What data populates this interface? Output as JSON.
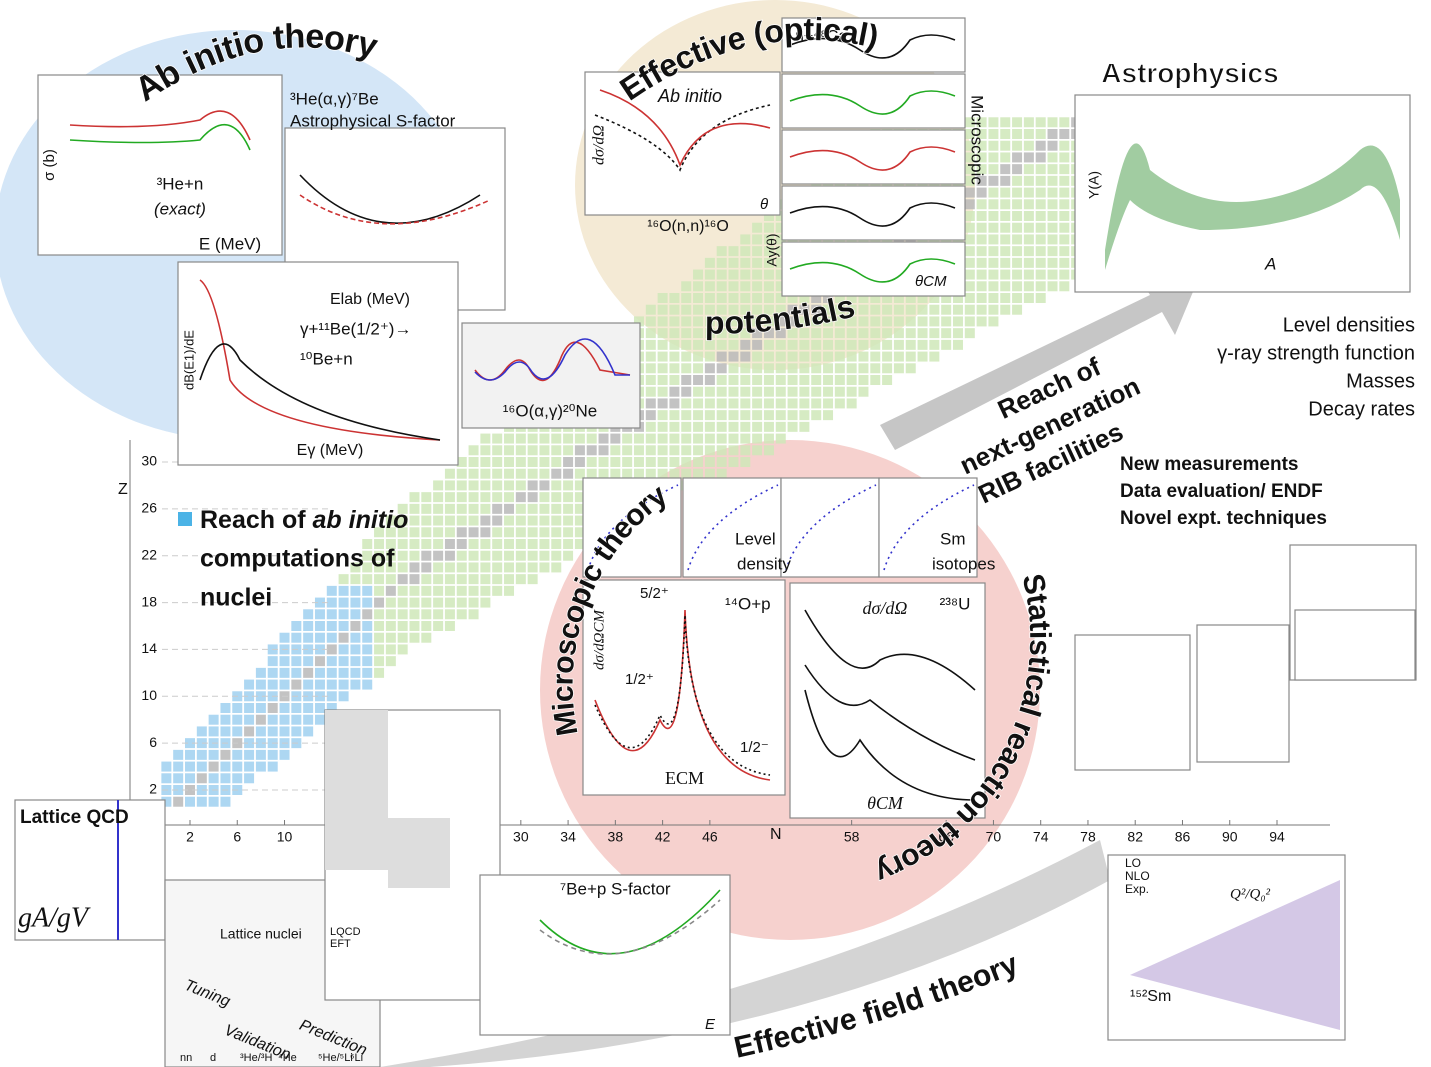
{
  "themes": {
    "ab_initio": "Ab initio theory",
    "optical_top": "Effective (optical)",
    "optical_bottom": "potentials",
    "astrophysics": "Astrophysics",
    "microscopic": "Microscopic theory",
    "statistical": "Statistical reaction theory",
    "eft": "Effective field theory"
  },
  "nuclear_chart": {
    "z_label": "Z",
    "n_label": "N",
    "z_ticks": [
      2,
      6,
      10,
      14,
      18,
      22,
      26,
      30
    ],
    "n_ticks": [
      2,
      6,
      10,
      30,
      34,
      38,
      42,
      46,
      58,
      66,
      70,
      74,
      78,
      82,
      86,
      90,
      94
    ],
    "legend": [
      "Reach of ",
      "ab initio",
      "computations of",
      "nuclei"
    ]
  },
  "rib": [
    "Reach of",
    "next-generation",
    "RIB facilities"
  ],
  "astro_topics": [
    "Level densities",
    "γ-ray strength function",
    "Masses",
    "Decay rates"
  ],
  "experiment_topics": [
    "New measurements",
    "Data evaluation/ ENDF",
    "Novel expt. techniques"
  ],
  "panels": {
    "he3n": [
      "σ (b)",
      "³He+n",
      "(exact)",
      "E (MeV)"
    ],
    "he3alpha": [
      "³He(α,γ)⁷Be",
      "Astrophysical S-factor",
      "Elab (MeV)"
    ],
    "be11": [
      "γ+¹¹Be(1/2⁺)→",
      "¹⁰Be+n",
      "dB(E1)/dE",
      "Eγ (MeV)"
    ],
    "o16ag": [
      "¹⁶O(α,γ)²⁰Ne"
    ],
    "o16nn": [
      "Ab initio",
      "dσ/dΩ",
      "θ",
      "¹⁶O(n,n)¹⁶O"
    ],
    "ca48": [
      "n+⁴⁸Ca",
      "Microscopic",
      "Ay(θ)",
      "θCM"
    ],
    "astro": [
      "Y(A)",
      "A"
    ],
    "level": [
      "Level",
      "density",
      "Sm",
      "isotopes"
    ],
    "o14p": [
      "dσ/dΩCM",
      "5/2⁺",
      "¹⁴O+p",
      "1/2⁺",
      "1/2⁻",
      "ECM"
    ],
    "u238": [
      "dσ/dΩ",
      "²³⁸U",
      "θCM"
    ],
    "lqcd": [
      "Lattice QCD",
      "gA/gV"
    ],
    "lnuclei": [
      "Lattice nuclei",
      "LQCD",
      "EFT",
      "Tuning",
      "Validation",
      "Prediction",
      "nn",
      "d",
      "³He/³H",
      "⁴He",
      "⁵He/⁵Li",
      "⁶Li"
    ],
    "be7p": [
      "⁷Be+p S-factor",
      "E"
    ],
    "sm152": [
      "LO",
      "NLO",
      "Exp.",
      "Q²/Q₀²",
      "¹⁵²Sm"
    ]
  }
}
